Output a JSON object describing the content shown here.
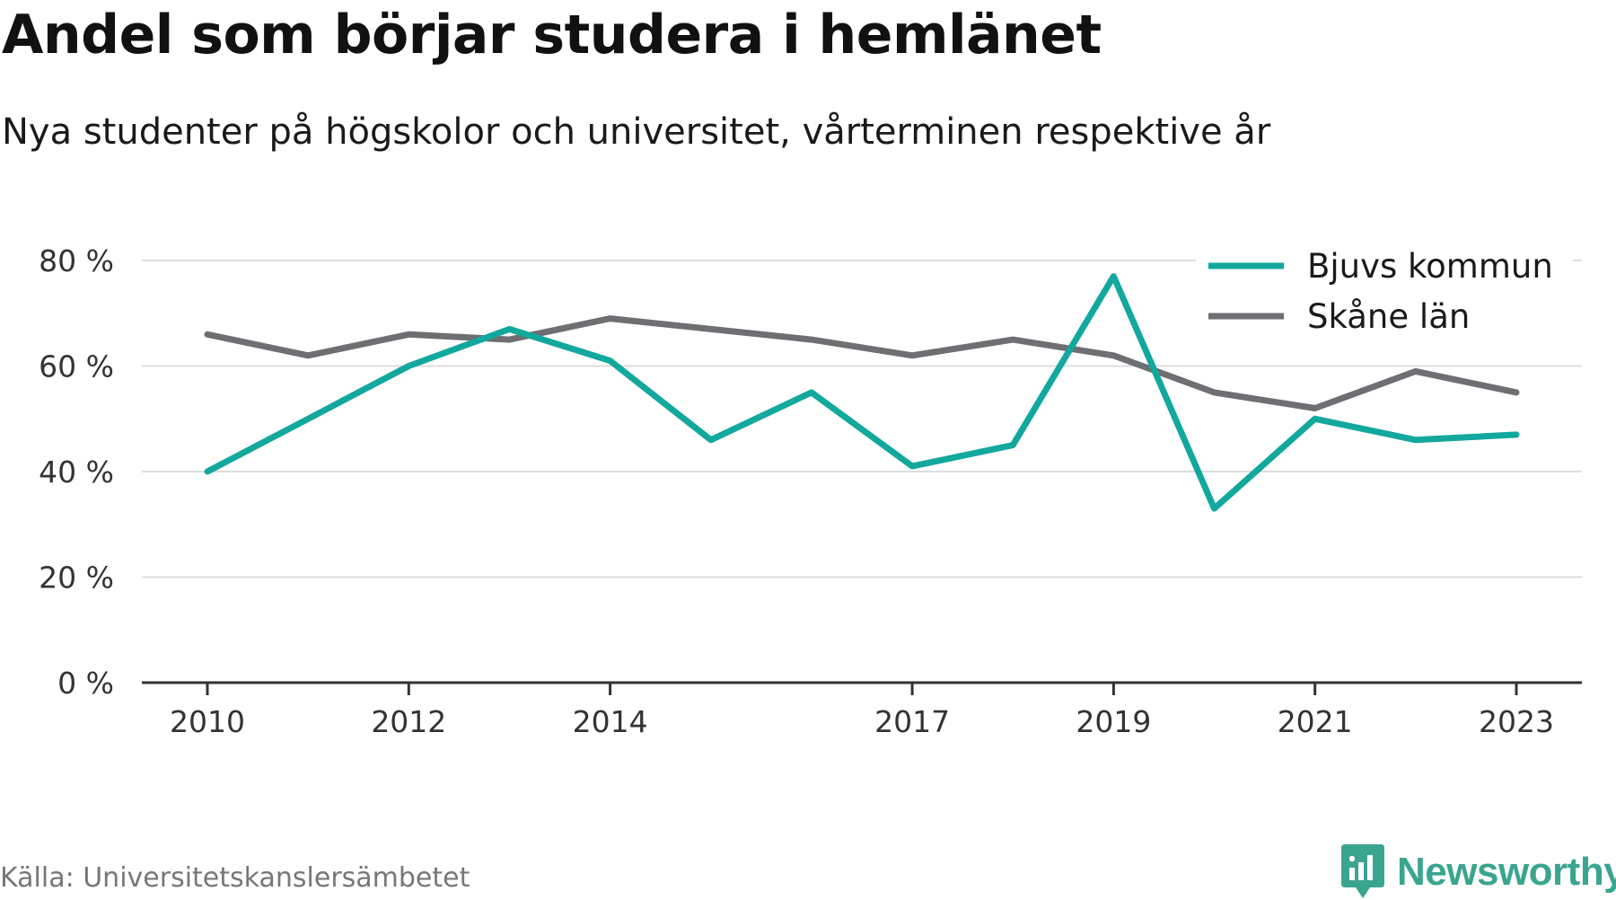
{
  "header": {
    "title": "Andel som börjar studera i hemlänet",
    "subtitle": "Nya studenter på högskolor och universitet, vårterminen respektive år"
  },
  "footer": {
    "source": "Källa: Universitetskanslersämbetet",
    "brand": "Newsworthy"
  },
  "colors": {
    "bjuv": "#12a89d",
    "skane": "#6e6e73",
    "grid": "#dddddd",
    "axis": "#333333",
    "brand": "#3aa58f"
  },
  "chart_data": {
    "type": "line",
    "x": [
      2010,
      2011,
      2012,
      2013,
      2014,
      2015,
      2016,
      2017,
      2018,
      2019,
      2020,
      2021,
      2022,
      2023
    ],
    "x_tick_labels": [
      "2010",
      "2012",
      "2014",
      "2017",
      "2019",
      "2021",
      "2023"
    ],
    "y_tick_labels": [
      "0 %",
      "20 %",
      "40 %",
      "60 %",
      "80 %"
    ],
    "y_ticks": [
      0,
      20,
      40,
      60,
      80
    ],
    "ylim": [
      0,
      80
    ],
    "grid": true,
    "legend_position": "top-right",
    "series": [
      {
        "name": "Bjuvs kommun",
        "color": "#12a89d",
        "values": [
          40,
          50,
          60,
          67,
          61,
          46,
          55,
          41,
          45,
          77,
          33,
          50,
          46,
          47
        ]
      },
      {
        "name": "Skåne län",
        "color": "#6e6e73",
        "values": [
          66,
          62,
          66,
          65,
          69,
          67,
          65,
          62,
          65,
          62,
          55,
          52,
          59,
          55
        ]
      }
    ]
  }
}
